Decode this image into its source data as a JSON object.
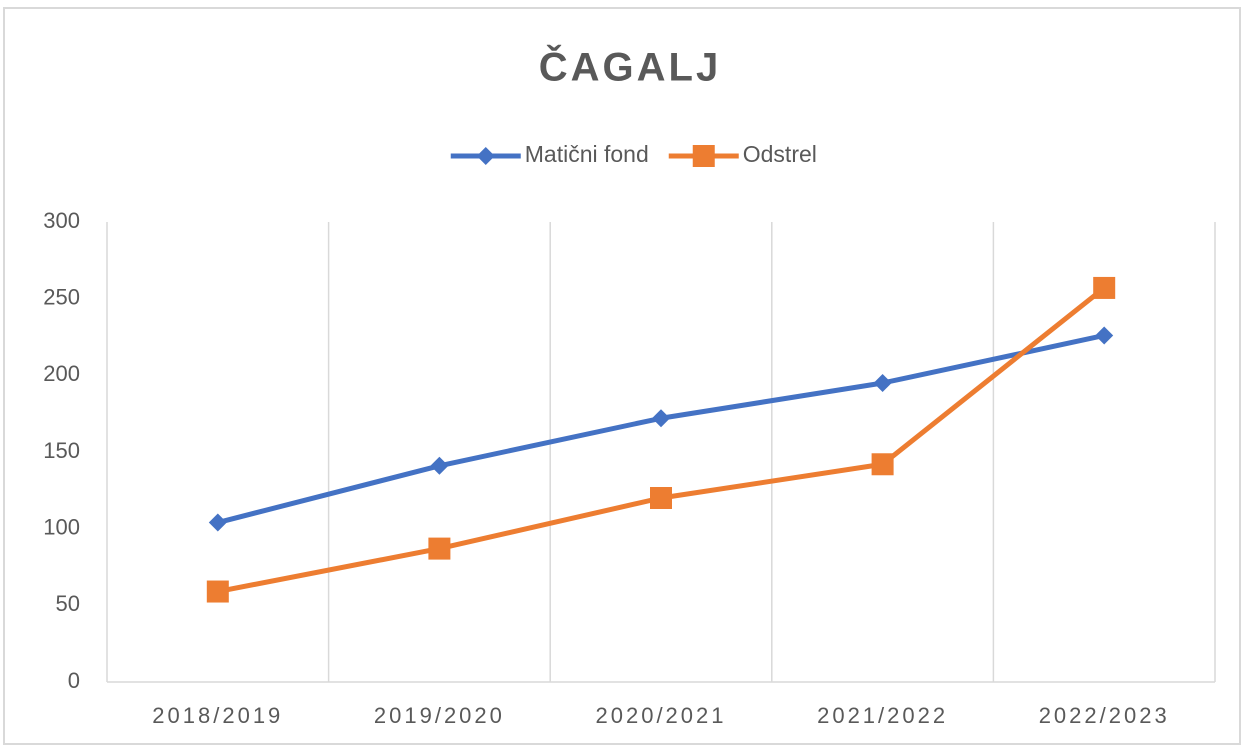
{
  "chart_data": {
    "type": "line",
    "title": "ČAGALJ",
    "categories": [
      "2018/2019",
      "2019/2020",
      "2020/2021",
      "2021/2022",
      "2022/2023"
    ],
    "series": [
      {
        "name": "Matični fond",
        "color": "#4472c4",
        "marker": "diamond",
        "values": [
          104,
          141,
          172,
          195,
          226
        ]
      },
      {
        "name": "Odstrel",
        "color": "#ed7d31",
        "marker": "square",
        "values": [
          59,
          87,
          120,
          142,
          257
        ]
      }
    ],
    "ylim": [
      0,
      300
    ],
    "yticks": [
      0,
      50,
      100,
      150,
      200,
      250,
      300
    ],
    "grid": "x",
    "legend": "top"
  }
}
